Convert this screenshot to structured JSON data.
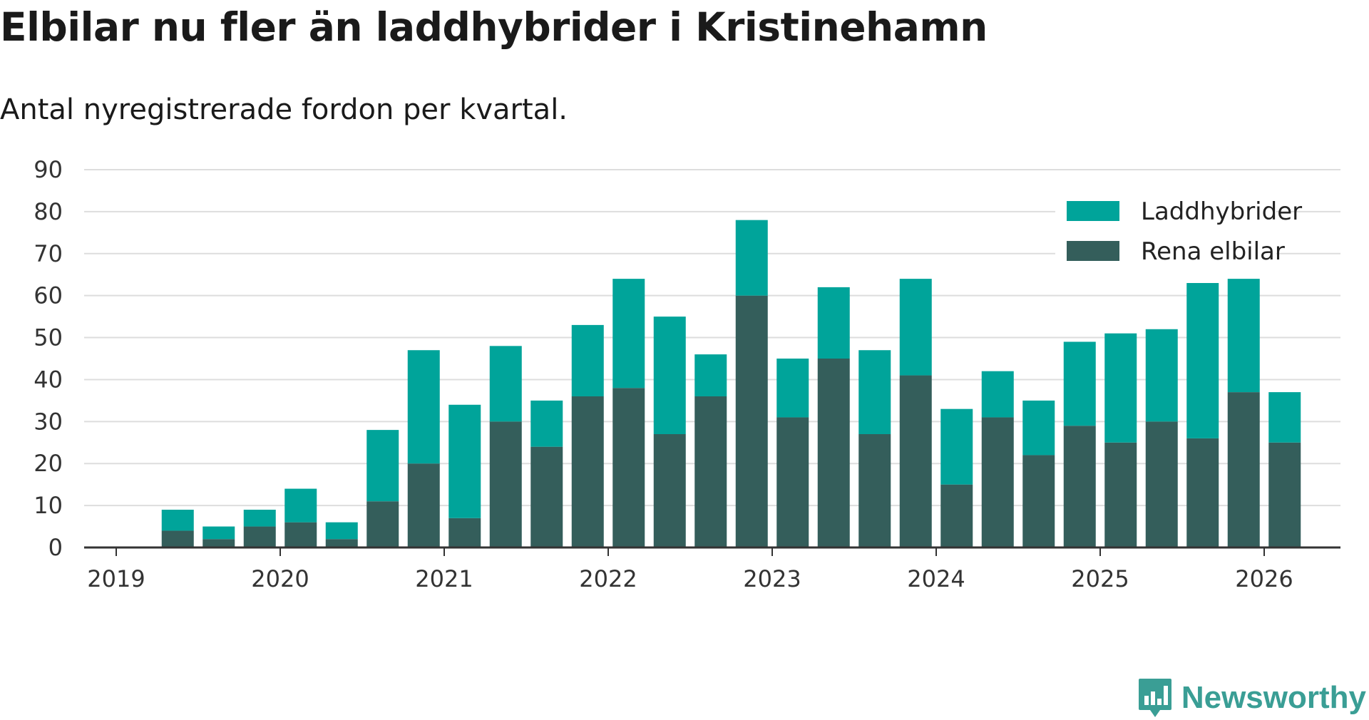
{
  "title": "Elbilar nu fler än laddhybrider i Kristinehamn",
  "subtitle": "Antal nyregistrerade fordon per kvartal.",
  "brand": "Newsworthy",
  "colors": {
    "phev": "#00a49a",
    "bev": "#345e5b",
    "grid": "#dddddd",
    "axis": "#333333",
    "brand": "#3a9e95"
  },
  "chart_data": {
    "type": "bar",
    "stacked": true,
    "x_start_year": 2019,
    "x_ticks": [
      "2019",
      "2020",
      "2021",
      "2022",
      "2023",
      "2024",
      "2025",
      "2026"
    ],
    "categories": [
      "2019 Q2",
      "2019 Q3",
      "2019 Q4",
      "2020 Q1",
      "2020 Q2",
      "2020 Q3",
      "2020 Q4",
      "2021 Q1",
      "2021 Q2",
      "2021 Q3",
      "2021 Q4",
      "2022 Q1",
      "2022 Q2",
      "2022 Q3",
      "2022 Q4",
      "2023 Q1",
      "2023 Q2",
      "2023 Q3",
      "2023 Q4",
      "2024 Q1",
      "2024 Q2",
      "2024 Q3",
      "2024 Q4",
      "2025 Q1",
      "2025 Q2",
      "2025 Q3",
      "2025 Q4",
      "2026 Q1"
    ],
    "series": [
      {
        "name": "Rena elbilar",
        "values": [
          4,
          2,
          5,
          6,
          2,
          11,
          20,
          7,
          30,
          24,
          36,
          38,
          27,
          36,
          60,
          31,
          45,
          27,
          41,
          15,
          31,
          22,
          29,
          25,
          30,
          26,
          37,
          25
        ]
      },
      {
        "name": "Laddhybrider",
        "values": [
          5,
          3,
          4,
          8,
          4,
          17,
          27,
          27,
          18,
          11,
          17,
          26,
          28,
          10,
          18,
          14,
          17,
          20,
          23,
          18,
          11,
          13,
          20,
          26,
          22,
          37,
          27,
          12
        ]
      }
    ],
    "legend": [
      "Laddhybrider",
      "Rena elbilar"
    ],
    "y_ticks": [
      0,
      10,
      20,
      30,
      40,
      50,
      60,
      70,
      80,
      90
    ],
    "ylim": [
      0,
      90
    ],
    "grid": true,
    "legend_position": "top-right"
  }
}
